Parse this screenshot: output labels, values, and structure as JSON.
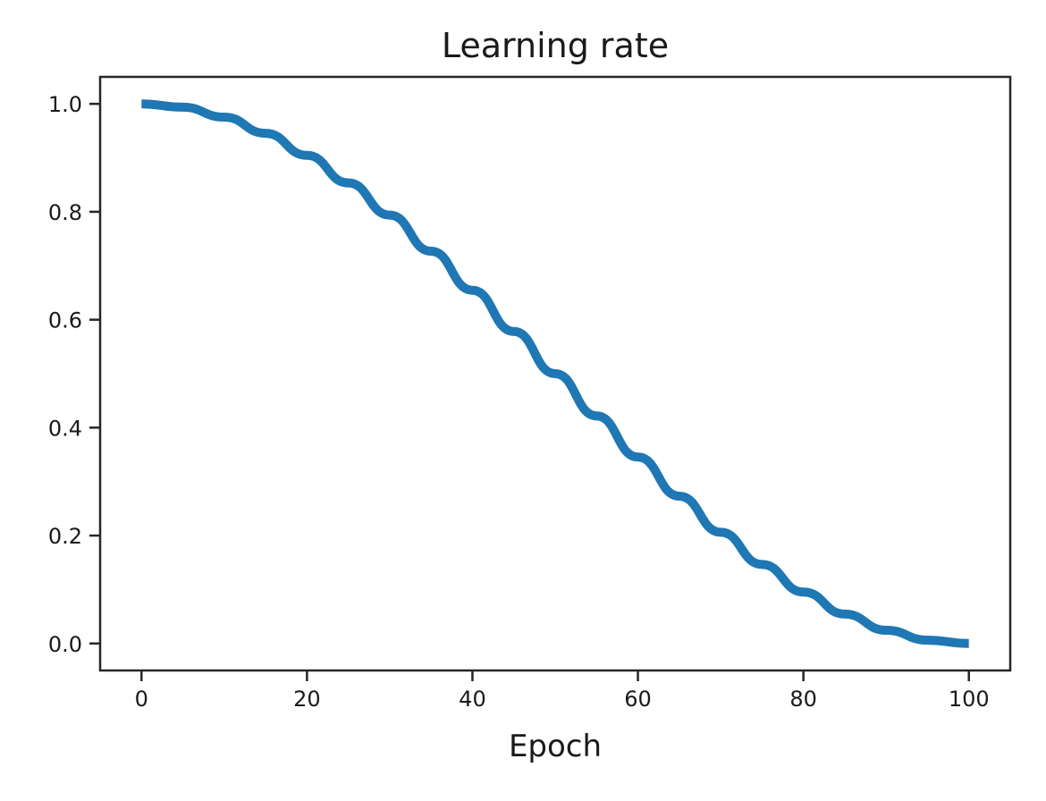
{
  "chart_data": {
    "type": "line",
    "title": "Learning rate",
    "xlabel": "Epoch",
    "ylabel": "",
    "x": [
      0,
      5,
      10,
      15,
      20,
      25,
      30,
      35,
      40,
      45,
      50,
      55,
      60,
      65,
      70,
      75,
      80,
      85,
      90,
      95,
      100
    ],
    "series": [
      {
        "name": "learning-rate",
        "values": [
          1.0,
          0.9938,
          0.9755,
          0.9455,
          0.9045,
          0.8536,
          0.7939,
          0.727,
          0.6545,
          0.5782,
          0.5,
          0.4218,
          0.3455,
          0.273,
          0.2061,
          0.1464,
          0.0955,
          0.0545,
          0.0245,
          0.0062,
          0.0
        ]
      }
    ],
    "xticks": [
      0,
      20,
      40,
      60,
      80,
      100
    ],
    "yticks": [
      "0.0",
      "0.2",
      "0.4",
      "0.6",
      "0.8",
      "1.0"
    ],
    "xlim": [
      -5,
      105
    ],
    "ylim": [
      -0.05,
      1.05
    ],
    "grid": false,
    "legend": "none",
    "line_color": "#1f77b4",
    "line_width": 10,
    "spine_color": "#262626",
    "text_color": "#1a1a1a"
  }
}
